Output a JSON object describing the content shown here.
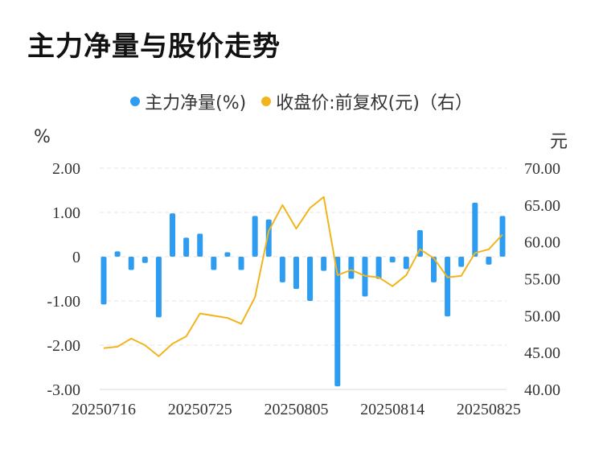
{
  "header": {
    "title": "主力净量与股价走势"
  },
  "units": {
    "left": "%",
    "right": "元"
  },
  "chart_data": {
    "type": "bar+line",
    "title": "主力净量与股价走势",
    "legend": [
      {
        "name": "主力净量(%)",
        "color": "#2e9cf0"
      },
      {
        "name": "收盘价:前复权(元)（右）",
        "color": "#f2b41c"
      }
    ],
    "legend_position": "top-center",
    "grid": true,
    "x_tick_labels": [
      "20250716",
      "20250725",
      "20250805",
      "20250814",
      "20250825"
    ],
    "x_tick_indices": [
      0,
      7,
      14,
      21,
      28
    ],
    "y_left": {
      "ticks": [
        "2.00",
        "1.00",
        "0",
        "-1.00",
        "-2.00",
        "-3.00"
      ],
      "min": -3,
      "max": 2
    },
    "y_right": {
      "ticks": [
        "70.00",
        "65.00",
        "60.00",
        "55.00",
        "50.00",
        "45.00",
        "40.00"
      ],
      "min": 40,
      "max": 70
    },
    "series": [
      {
        "name": "主力净量(%)",
        "kind": "bar",
        "axis": "left",
        "color": "#2e9cf0",
        "values": [
          -1.08,
          0.12,
          -0.3,
          -0.14,
          -1.37,
          0.98,
          0.43,
          0.52,
          -0.3,
          0.1,
          -0.3,
          0.92,
          0.84,
          -0.58,
          -0.73,
          -1.0,
          -0.32,
          -2.93,
          -0.5,
          -0.9,
          -0.5,
          -0.13,
          -0.28,
          0.6,
          -0.58,
          -1.35,
          -0.23,
          1.22,
          -0.18,
          0.92
        ]
      },
      {
        "name": "收盘价:前复权(元)（右）",
        "kind": "line",
        "axis": "right",
        "color": "#f2b41c",
        "values": [
          45.6,
          45.8,
          46.9,
          46.0,
          44.5,
          46.2,
          47.2,
          50.3,
          50.0,
          49.7,
          48.9,
          52.5,
          61.5,
          65.0,
          61.8,
          64.6,
          66.1,
          55.5,
          56.2,
          55.4,
          55.2,
          54.0,
          55.5,
          59.0,
          57.8,
          55.2,
          55.4,
          58.5,
          59.0,
          61.0
        ]
      }
    ]
  }
}
